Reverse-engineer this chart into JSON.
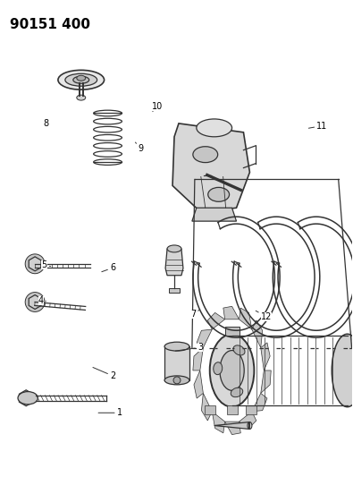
{
  "title": "90151 400",
  "background_color": "#ffffff",
  "line_color": "#333333",
  "label_color": "#000000",
  "figsize": [
    3.95,
    5.33
  ],
  "dpi": 100,
  "parts_labels": [
    [
      1,
      0.33,
      0.868,
      0.27,
      0.868
    ],
    [
      2,
      0.31,
      0.79,
      0.255,
      0.77
    ],
    [
      3,
      0.56,
      0.73,
      0.49,
      0.738
    ],
    [
      4,
      0.105,
      0.632,
      0.135,
      0.632
    ],
    [
      5,
      0.115,
      0.556,
      0.148,
      0.56
    ],
    [
      6,
      0.31,
      0.562,
      0.28,
      0.572
    ],
    [
      7,
      0.54,
      0.66,
      0.57,
      0.648
    ],
    [
      8,
      0.12,
      0.258,
      0.13,
      0.26
    ],
    [
      9,
      0.39,
      0.31,
      0.378,
      0.293
    ],
    [
      10,
      0.43,
      0.222,
      0.432,
      0.232
    ],
    [
      11,
      0.9,
      0.262,
      0.87,
      0.268
    ],
    [
      12,
      0.74,
      0.665,
      0.72,
      0.65
    ]
  ]
}
